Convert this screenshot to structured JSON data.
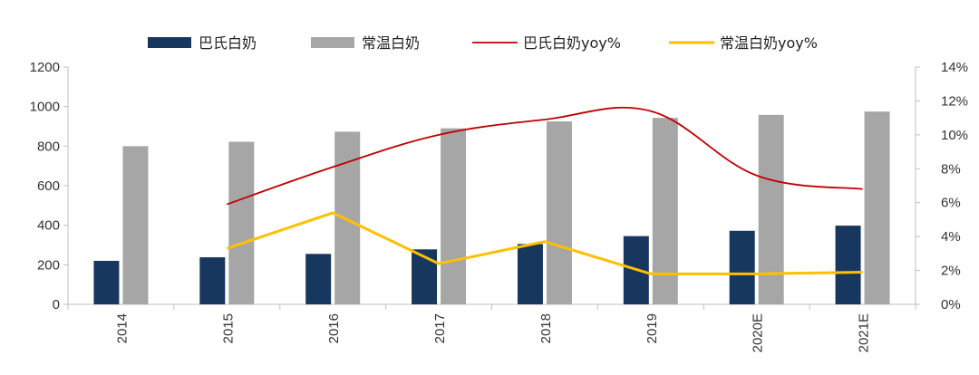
{
  "chart_data": {
    "type": "bar",
    "categories": [
      "2014",
      "2015",
      "2016",
      "2017",
      "2018",
      "2019",
      "2020E",
      "2021E"
    ],
    "series": [
      {
        "name": "巴氏白奶",
        "type": "bar",
        "axis": "left",
        "color": "#17375e",
        "values": [
          220,
          238,
          255,
          278,
          305,
          345,
          372,
          398
        ]
      },
      {
        "name": "常温白奶",
        "type": "bar",
        "axis": "left",
        "color": "#a6a6a6",
        "values": [
          800,
          822,
          873,
          890,
          925,
          943,
          958,
          975
        ]
      },
      {
        "name": "巴氏白奶yoy%",
        "type": "line",
        "axis": "right",
        "color": "#c00000",
        "values": [
          null,
          5.9,
          8.1,
          10.0,
          10.9,
          11.4,
          7.6,
          6.8
        ]
      },
      {
        "name": "常温白奶yoy%",
        "type": "line",
        "axis": "right",
        "color": "#ffc000",
        "values": [
          null,
          3.3,
          5.4,
          2.4,
          3.7,
          1.8,
          1.8,
          1.9
        ]
      }
    ],
    "yaxis_left": {
      "ylim": [
        0,
        1200
      ],
      "ticks": [
        "0",
        "200",
        "400",
        "600",
        "800",
        "1000",
        "1200"
      ]
    },
    "yaxis_right": {
      "ylim": [
        0,
        14
      ],
      "ticks": [
        "0%",
        "2%",
        "4%",
        "6%",
        "8%",
        "10%",
        "12%",
        "14%"
      ]
    },
    "title": "",
    "xlabel": "",
    "ylabel": "",
    "grid": false,
    "legend": "top"
  }
}
